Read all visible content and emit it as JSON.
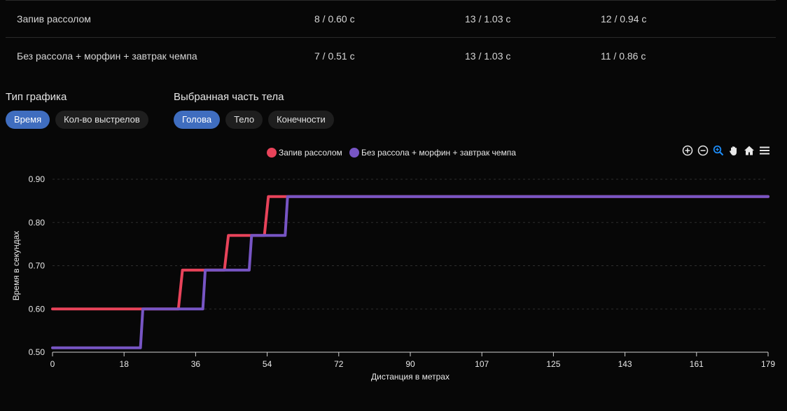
{
  "table": {
    "rows": [
      [
        "Запив рассолом",
        "8 / 0.60 с",
        "13 / 1.03 с",
        "12 / 0.94 с"
      ],
      [
        "Без рассола + морфин + завтрак чемпа",
        "7 / 0.51 с",
        "13 / 1.03 с",
        "11 / 0.86 с"
      ]
    ]
  },
  "controls": {
    "chart_type": {
      "title": "Тип графика",
      "options": [
        "Время",
        "Кол-во выстрелов"
      ],
      "selected": "Время"
    },
    "body_part": {
      "title": "Выбранная часть тела",
      "options": [
        "Голова",
        "Тело",
        "Конечности"
      ],
      "selected": "Голова"
    }
  },
  "toolbar": {
    "icons": [
      "zoom-in-icon",
      "zoom-out-icon",
      "zoom-select-icon",
      "pan-hand-icon",
      "home-reset-icon",
      "menu-icon"
    ],
    "active_color": "#1e90ff"
  },
  "chart_data": {
    "type": "line",
    "xlabel": "Дистанция в метрах",
    "ylabel": "Время в секундах",
    "xlim": [
      0,
      179
    ],
    "ylim": [
      0.5,
      0.9
    ],
    "x_ticks": [
      "0",
      "18",
      "36",
      "54",
      "72",
      "90",
      "107",
      "125",
      "143",
      "161",
      "179"
    ],
    "y_ticks": [
      "0.50",
      "0.60",
      "0.70",
      "0.80",
      "0.90"
    ],
    "grid": "horizontal-dashed",
    "legend": "top-center",
    "series": [
      {
        "name": "Запив рассолом",
        "color": "#e8435a",
        "points": [
          [
            0,
            0.6
          ],
          [
            31.5,
            0.6
          ],
          [
            32.5,
            0.69
          ],
          [
            43,
            0.69
          ],
          [
            44,
            0.77
          ],
          [
            53,
            0.77
          ],
          [
            54,
            0.86
          ],
          [
            179,
            0.86
          ]
        ]
      },
      {
        "name": "Без рассола + морфин + завтрак чемпа",
        "color": "#7755c4",
        "points": [
          [
            0,
            0.51
          ],
          [
            22,
            0.51
          ],
          [
            22.6,
            0.6
          ],
          [
            37.6,
            0.6
          ],
          [
            38.2,
            0.69
          ],
          [
            49.2,
            0.69
          ],
          [
            49.8,
            0.77
          ],
          [
            58.2,
            0.77
          ],
          [
            58.8,
            0.86
          ],
          [
            179,
            0.86
          ]
        ]
      }
    ]
  }
}
